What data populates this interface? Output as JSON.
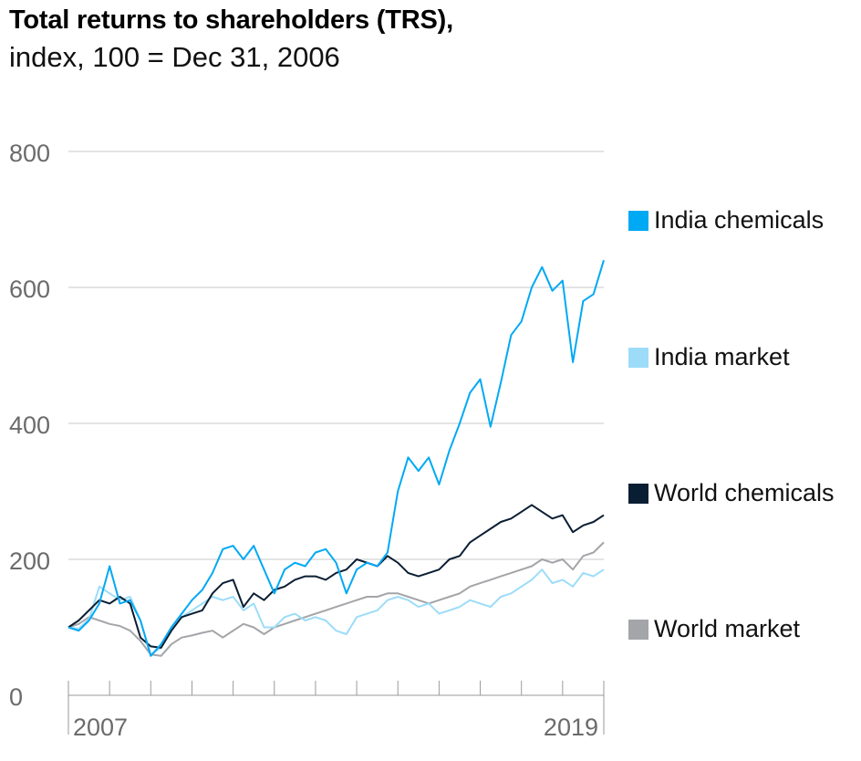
{
  "header": {
    "title": "Total returns to shareholders (TRS),",
    "subtitle": "index, 100 = Dec 31, 2006"
  },
  "chart_data": {
    "type": "line",
    "title": "Total returns to shareholders (TRS),",
    "subtitle": "index, 100 = Dec 31, 2006",
    "xlabel": "",
    "ylabel": "",
    "x_range": [
      2007,
      2020
    ],
    "x_tick_labels": [
      "2007",
      "2019"
    ],
    "ylim": [
      0,
      800
    ],
    "yticks": [
      0,
      200,
      400,
      600,
      800
    ],
    "grid": true,
    "legend_position": "right",
    "x": [
      2007.0,
      2007.25,
      2007.5,
      2007.75,
      2008.0,
      2008.25,
      2008.5,
      2008.75,
      2009.0,
      2009.25,
      2009.5,
      2009.75,
      2010.0,
      2010.25,
      2010.5,
      2010.75,
      2011.0,
      2011.25,
      2011.5,
      2011.75,
      2012.0,
      2012.25,
      2012.5,
      2012.75,
      2013.0,
      2013.25,
      2013.5,
      2013.75,
      2014.0,
      2014.25,
      2014.5,
      2014.75,
      2015.0,
      2015.25,
      2015.5,
      2015.75,
      2016.0,
      2016.25,
      2016.5,
      2016.75,
      2017.0,
      2017.25,
      2017.5,
      2017.75,
      2018.0,
      2018.25,
      2018.5,
      2018.75,
      2019.0,
      2019.25,
      2019.5,
      2019.75,
      2020.0
    ],
    "series": [
      {
        "name": "India chemicals",
        "color": "#00a9f4",
        "values": [
          100,
          95,
          110,
          135,
          190,
          135,
          140,
          110,
          58,
          75,
          100,
          120,
          140,
          155,
          180,
          215,
          220,
          200,
          220,
          185,
          150,
          185,
          195,
          190,
          210,
          215,
          195,
          150,
          185,
          195,
          190,
          210,
          300,
          350,
          330,
          350,
          310,
          360,
          400,
          445,
          465,
          395,
          460,
          530,
          550,
          600,
          630,
          595,
          610,
          490,
          580,
          590,
          640
        ]
      },
      {
        "name": "India market",
        "color": "#9cdcf9",
        "values": [
          100,
          98,
          112,
          160,
          150,
          140,
          145,
          110,
          60,
          70,
          95,
          115,
          125,
          135,
          145,
          140,
          145,
          125,
          135,
          100,
          100,
          115,
          120,
          110,
          115,
          110,
          95,
          90,
          115,
          120,
          125,
          140,
          145,
          140,
          130,
          135,
          120,
          125,
          130,
          140,
          135,
          130,
          145,
          150,
          160,
          170,
          185,
          165,
          170,
          160,
          180,
          175,
          185
        ]
      },
      {
        "name": "World chemicals",
        "color": "#0a1e33",
        "values": [
          100,
          110,
          125,
          140,
          135,
          145,
          135,
          85,
          72,
          70,
          95,
          115,
          120,
          125,
          150,
          165,
          170,
          130,
          150,
          140,
          155,
          160,
          170,
          175,
          175,
          170,
          180,
          185,
          200,
          195,
          190,
          205,
          195,
          180,
          175,
          180,
          185,
          200,
          205,
          225,
          235,
          245,
          255,
          260,
          270,
          280,
          270,
          260,
          265,
          240,
          250,
          255,
          265
        ]
      },
      {
        "name": "World market",
        "color": "#a3a5a8",
        "values": [
          100,
          105,
          115,
          110,
          105,
          102,
          95,
          80,
          60,
          58,
          75,
          85,
          88,
          92,
          95,
          85,
          95,
          105,
          100,
          90,
          100,
          105,
          110,
          115,
          120,
          125,
          130,
          135,
          140,
          145,
          145,
          150,
          150,
          145,
          140,
          135,
          140,
          145,
          150,
          160,
          165,
          170,
          175,
          180,
          185,
          190,
          200,
          195,
          200,
          185,
          205,
          210,
          225
        ]
      }
    ]
  }
}
